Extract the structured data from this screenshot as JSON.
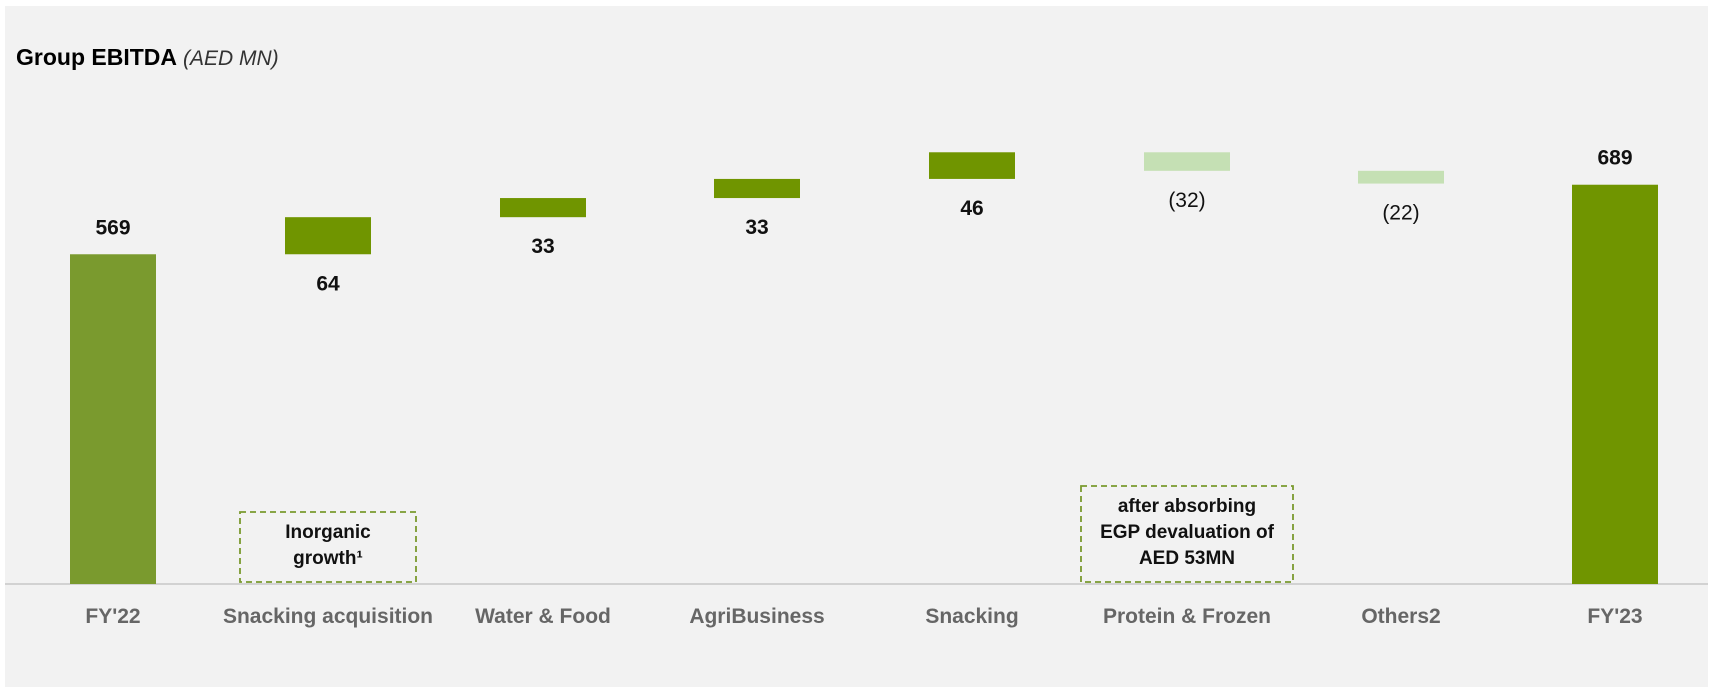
{
  "chart_data": {
    "type": "waterfall",
    "title": "Group EBITDA",
    "unit": "(AED MN)",
    "categories": [
      "FY'22",
      "Snacking acquisition",
      "Water & Food",
      "AgriBusiness",
      "Snacking",
      "Protein & Frozen",
      "Others2",
      "FY'23"
    ],
    "values": [
      569,
      64,
      33,
      33,
      46,
      -32,
      -22,
      689
    ],
    "kinds": [
      "total",
      "delta",
      "delta",
      "delta",
      "delta",
      "delta",
      "delta",
      "total"
    ],
    "labels": [
      "569",
      "64",
      "33",
      "33",
      "46",
      "(32)",
      "(22)",
      "689"
    ],
    "annotations": [
      {
        "category": "Snacking acquisition",
        "lines": [
          "Inorganic",
          "growth¹"
        ]
      },
      {
        "category": "Protein & Frozen",
        "lines": [
          "after absorbing",
          "EGP devaluation of",
          "AED 53MN"
        ]
      }
    ],
    "colors": {
      "total_start": "#7a9a2e",
      "total_end": "#709500",
      "increase": "#709500",
      "decrease": "#c5e0b4",
      "axis": "#c8c8c8",
      "annotation_border": "#7a9a2e"
    }
  }
}
